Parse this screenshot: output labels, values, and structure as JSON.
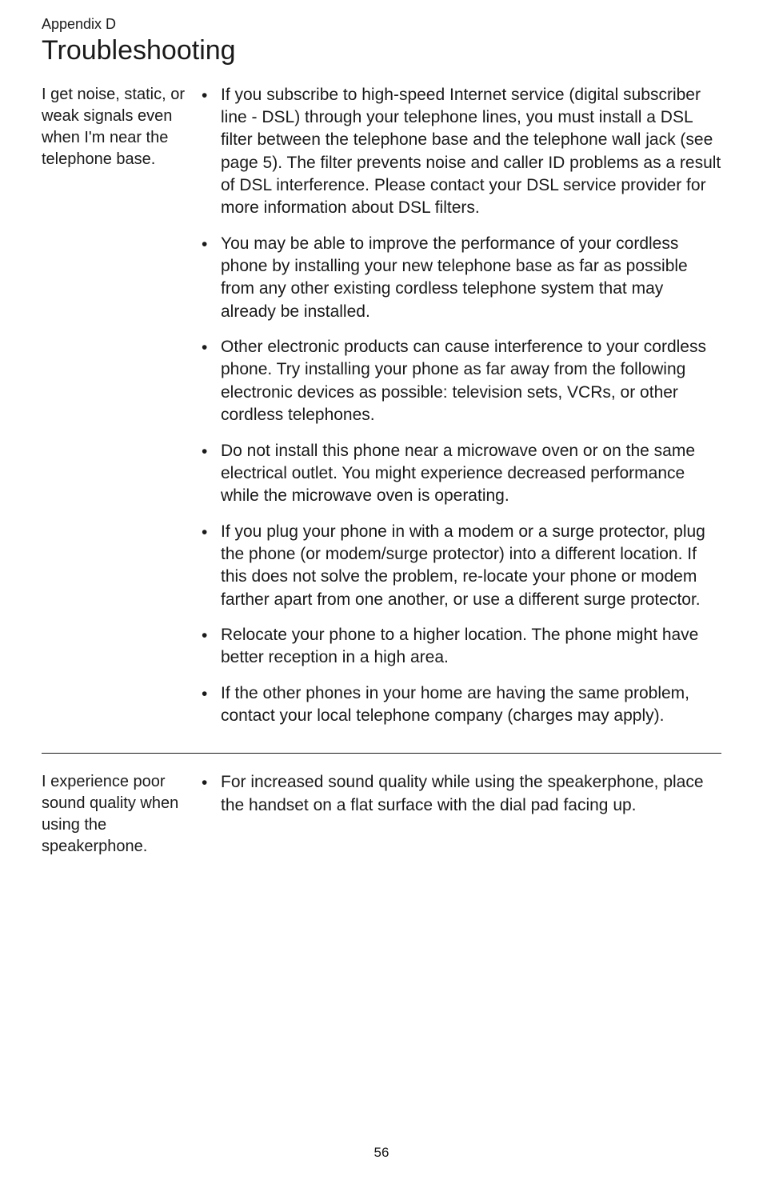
{
  "header": {
    "appendix": "Appendix D",
    "title": "Troubleshooting"
  },
  "sections": [
    {
      "problem": "I get noise, static, or weak signals even when I'm near the telephone base.",
      "bullets": [
        "If you subscribe to high-speed Internet service (digital subscriber line - DSL) through your telephone lines, you must install a DSL filter between the telephone base and the telephone wall jack (see page 5). The filter prevents noise and caller ID problems as a result of DSL interference. Please contact your DSL service provider for more information about DSL filters.",
        "You may be able to improve the performance of your cordless phone by installing your new telephone base as far as possible from any other existing cordless telephone system that may already be installed.",
        "Other electronic products can cause interference to your cordless phone. Try installing your phone as far away from the following electronic devices as possible: television sets, VCRs, or other cordless telephones.",
        "Do not install this phone near a microwave oven or on the same electrical outlet. You might experience decreased performance while the microwave oven is operating.",
        "If you plug your phone in with a modem or a surge protector, plug the phone (or modem/surge protector) into a different location. If this does not solve the problem, re-locate your phone or modem farther apart from one another, or use a different surge protector.",
        "Relocate your phone to a higher location. The phone might have better reception in a high area.",
        "If the other phones in your home are having the same problem, contact your local telephone company (charges may apply)."
      ]
    },
    {
      "problem": "I experience poor sound quality when using the speakerphone.",
      "bullets": [
        "For increased sound quality while using the speakerphone, place the handset on a flat surface with the dial pad facing up."
      ]
    }
  ],
  "page_number": "56",
  "bullet_glyph": "•"
}
